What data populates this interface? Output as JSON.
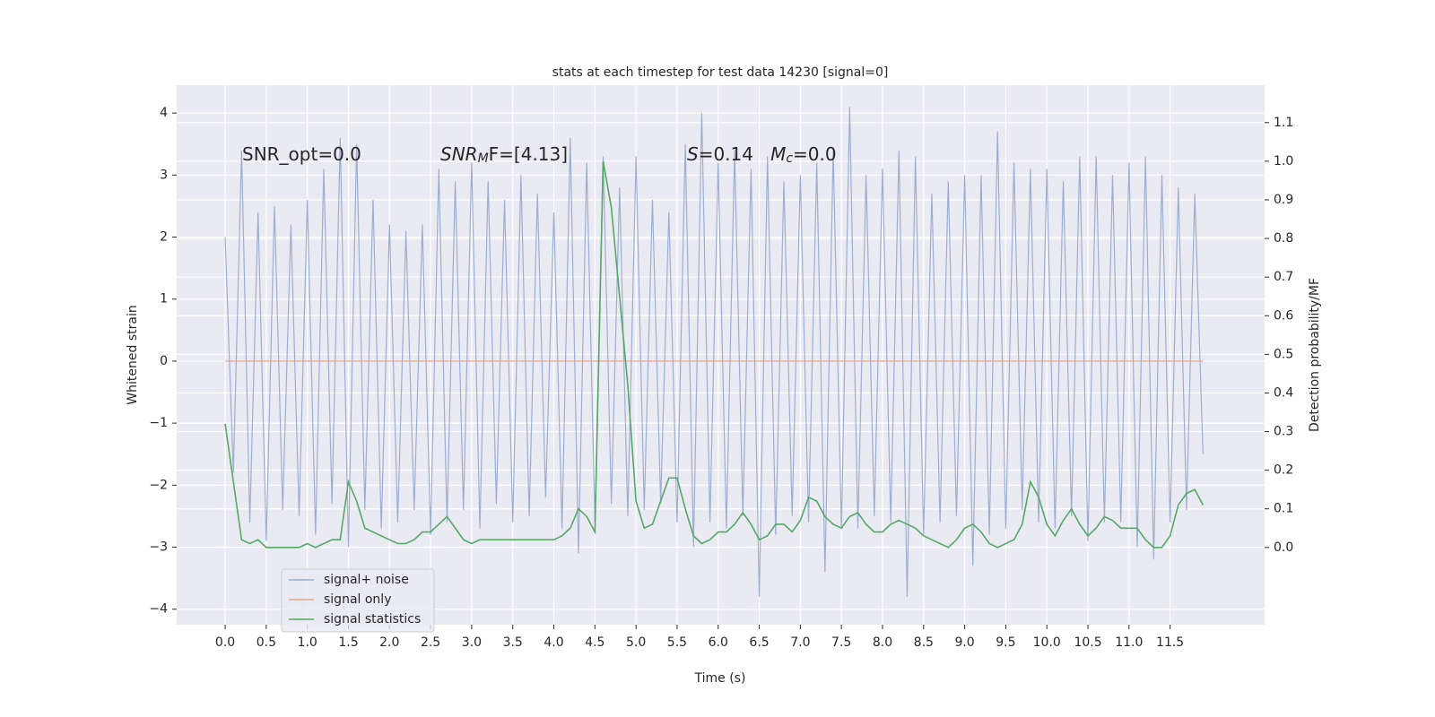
{
  "chart_data": {
    "type": "line",
    "title": "stats at each timestep for test data 14230 [signal=0]",
    "xlabel": "Time (s)",
    "ylabel": "Whitened strain",
    "y2label": "Detection probability/MF",
    "annotations": [
      [
        "SNR_opt=0.0"
      ],
      [
        "SNR",
        "M",
        "F=[4.13]"
      ],
      [
        "S",
        "=0.14   ",
        "M",
        "c",
        "=0.0"
      ]
    ],
    "grid": true,
    "background": "#eaeaf2",
    "legend": "lower left",
    "xlim": [
      -0.59,
      12.65
    ],
    "ylim": [
      -4.25,
      4.45
    ],
    "y2lim": [
      -0.2,
      1.197
    ],
    "xticks": [
      {
        "value": 0,
        "label": "0.0"
      },
      {
        "value": 0.5,
        "label": "0.5"
      },
      {
        "value": 1,
        "label": "1.0"
      },
      {
        "value": 1.5,
        "label": "1.5"
      },
      {
        "value": 2,
        "label": "2.0"
      },
      {
        "value": 2.5,
        "label": "2.5"
      },
      {
        "value": 3,
        "label": "3.0"
      },
      {
        "value": 3.5,
        "label": "3.5"
      },
      {
        "value": 4,
        "label": "4.0"
      },
      {
        "value": 4.5,
        "label": "4.5"
      },
      {
        "value": 5,
        "label": "5.0"
      },
      {
        "value": 5.5,
        "label": "5.5"
      },
      {
        "value": 6,
        "label": "6.0"
      },
      {
        "value": 6.5,
        "label": "6.5"
      },
      {
        "value": 7,
        "label": "7.0"
      },
      {
        "value": 7.5,
        "label": "7.5"
      },
      {
        "value": 8,
        "label": "8.0"
      },
      {
        "value": 8.5,
        "label": "8.5"
      },
      {
        "value": 9,
        "label": "9.0"
      },
      {
        "value": 9.5,
        "label": "9.5"
      },
      {
        "value": 10,
        "label": "10.0"
      },
      {
        "value": 10.5,
        "label": "10.5"
      },
      {
        "value": 11,
        "label": "11.0"
      },
      {
        "value": 11.5,
        "label": "11.5"
      }
    ],
    "yticks": [
      {
        "value": -4,
        "label": "−4"
      },
      {
        "value": -3,
        "label": "−3"
      },
      {
        "value": -2,
        "label": "−2"
      },
      {
        "value": -1,
        "label": "−1"
      },
      0,
      1,
      2,
      3,
      4
    ],
    "y2ticks": [
      {
        "value": 0,
        "label": "0.0"
      },
      {
        "value": 0.1,
        "label": "0.1"
      },
      {
        "value": 0.2,
        "label": "0.2"
      },
      {
        "value": 0.3,
        "label": "0.3"
      },
      {
        "value": 0.4,
        "label": "0.4"
      },
      {
        "value": 0.5,
        "label": "0.5"
      },
      {
        "value": 0.6,
        "label": "0.6"
      },
      {
        "value": 0.7,
        "label": "0.7"
      },
      {
        "value": 0.8,
        "label": "0.8"
      },
      {
        "value": 0.9,
        "label": "0.9"
      },
      {
        "value": 1,
        "label": "1.0"
      },
      {
        "value": 1.1,
        "label": "1.1"
      }
    ],
    "x": [
      0,
      0.1,
      0.2,
      0.3,
      0.4,
      0.5,
      0.6,
      0.7,
      0.8,
      0.9,
      1,
      1.1,
      1.2,
      1.3,
      1.4,
      1.5,
      1.6,
      1.7,
      1.8,
      1.9,
      2,
      2.1,
      2.2,
      2.3,
      2.4,
      2.5,
      2.6,
      2.7,
      2.8,
      2.9,
      3,
      3.1,
      3.2,
      3.3,
      3.4,
      3.5,
      3.6,
      3.7,
      3.8,
      3.9,
      4,
      4.1,
      4.2,
      4.3,
      4.4,
      4.5,
      4.6,
      4.7,
      4.8,
      4.9,
      5,
      5.1,
      5.2,
      5.3,
      5.4,
      5.5,
      5.6,
      5.7,
      5.8,
      5.9,
      6,
      6.1,
      6.2,
      6.3,
      6.4,
      6.5,
      6.6,
      6.7,
      6.8,
      6.9,
      7,
      7.1,
      7.2,
      7.3,
      7.4,
      7.5,
      7.6,
      7.7,
      7.8,
      7.9,
      8,
      8.1,
      8.2,
      8.3,
      8.4,
      8.5,
      8.6,
      8.7,
      8.8,
      8.9,
      9,
      9.1,
      9.2,
      9.3,
      9.4,
      9.5,
      9.6,
      9.7,
      9.8,
      9.9,
      10,
      10.1,
      10.2,
      10.3,
      10.4,
      10.5,
      10.6,
      10.7,
      10.8,
      10.9,
      11,
      11.1,
      11.2,
      11.3,
      11.4,
      11.5,
      11.6,
      11.7,
      11.8,
      11.9
    ],
    "series": [
      {
        "name": "signal+ noise",
        "color": "#9aabd0",
        "axis": "y",
        "values": [
          2.0,
          -1.8,
          3.4,
          -2.6,
          2.4,
          -2.9,
          2.5,
          -2.4,
          2.2,
          -2.5,
          2.6,
          -2.8,
          3.1,
          -2.3,
          3.6,
          -3.0,
          3.5,
          -2.4,
          2.6,
          -2.7,
          2.2,
          -2.6,
          2.1,
          -2.4,
          2.2,
          -2.8,
          3.1,
          -2.6,
          2.9,
          -2.4,
          3.2,
          -2.7,
          2.9,
          -2.3,
          2.6,
          -2.6,
          3.0,
          -2.5,
          2.7,
          -2.2,
          2.4,
          -2.7,
          3.6,
          -3.1,
          3.2,
          -2.6,
          3.3,
          -2.3,
          2.8,
          -2.5,
          3.3,
          -2.4,
          2.6,
          -2.3,
          2.4,
          -2.6,
          3.5,
          -3.0,
          4.0,
          -2.6,
          3.2,
          -2.7,
          3.4,
          -2.5,
          3.1,
          -3.8,
          3.3,
          -2.8,
          2.9,
          -2.5,
          3.0,
          -2.6,
          3.2,
          -3.4,
          3.4,
          -2.7,
          4.1,
          -2.7,
          3.0,
          -2.5,
          3.1,
          -2.6,
          3.4,
          -3.8,
          3.3,
          -2.8,
          2.7,
          -2.6,
          2.9,
          -2.5,
          3.0,
          -3.3,
          3.0,
          -2.8,
          3.7,
          -2.7,
          3.2,
          -2.4,
          3.1,
          -2.6,
          3.1,
          -2.7,
          2.9,
          -2.5,
          3.3,
          -2.9,
          3.3,
          -2.6,
          3.0,
          -2.6,
          3.2,
          -3.0,
          3.3,
          -3.2,
          3.0,
          -2.6,
          2.8,
          -2.4,
          2.7,
          -1.5
        ]
      },
      {
        "name": "signal only",
        "color": "#e3a387",
        "axis": "y",
        "values": [
          0,
          0,
          0,
          0,
          0,
          0,
          0,
          0,
          0,
          0,
          0,
          0,
          0,
          0,
          0,
          0,
          0,
          0,
          0,
          0,
          0,
          0,
          0,
          0,
          0,
          0,
          0,
          0,
          0,
          0,
          0,
          0,
          0,
          0,
          0,
          0,
          0,
          0,
          0,
          0,
          0,
          0,
          0,
          0,
          0,
          0,
          0,
          0,
          0,
          0,
          0,
          0,
          0,
          0,
          0,
          0,
          0,
          0,
          0,
          0,
          0,
          0,
          0,
          0,
          0,
          0,
          0,
          0,
          0,
          0,
          0,
          0,
          0,
          0,
          0,
          0,
          0,
          0,
          0,
          0,
          0,
          0,
          0,
          0,
          0,
          0,
          0,
          0,
          0,
          0,
          0,
          0,
          0,
          0,
          0,
          0,
          0,
          0,
          0,
          0,
          0,
          0,
          0,
          0,
          0,
          0,
          0,
          0,
          0,
          0,
          0,
          0,
          0,
          0,
          0,
          0,
          0,
          0,
          0,
          0
        ]
      },
      {
        "name": "signal statistics",
        "color": "#55a868",
        "axis": "y2",
        "values": [
          0.32,
          0.17,
          0.02,
          0.01,
          0.02,
          0.0,
          0.0,
          0.0,
          0.0,
          0.0,
          0.01,
          0.0,
          0.01,
          0.02,
          0.02,
          0.17,
          0.12,
          0.05,
          0.04,
          0.03,
          0.02,
          0.01,
          0.01,
          0.02,
          0.04,
          0.04,
          0.06,
          0.08,
          0.05,
          0.02,
          0.01,
          0.02,
          0.02,
          0.02,
          0.02,
          0.02,
          0.02,
          0.02,
          0.02,
          0.02,
          0.02,
          0.03,
          0.05,
          0.1,
          0.08,
          0.04,
          1.0,
          0.88,
          0.65,
          0.42,
          0.12,
          0.05,
          0.06,
          0.12,
          0.18,
          0.18,
          0.1,
          0.03,
          0.01,
          0.02,
          0.04,
          0.04,
          0.06,
          0.09,
          0.06,
          0.02,
          0.03,
          0.06,
          0.06,
          0.04,
          0.07,
          0.13,
          0.12,
          0.08,
          0.06,
          0.05,
          0.08,
          0.09,
          0.06,
          0.04,
          0.04,
          0.06,
          0.07,
          0.06,
          0.05,
          0.03,
          0.02,
          0.01,
          0.0,
          0.02,
          0.05,
          0.06,
          0.04,
          0.01,
          0.0,
          0.01,
          0.02,
          0.06,
          0.17,
          0.13,
          0.06,
          0.03,
          0.07,
          0.1,
          0.06,
          0.03,
          0.05,
          0.08,
          0.07,
          0.05,
          0.05,
          0.05,
          0.02,
          0.0,
          0.0,
          0.03,
          0.11,
          0.14,
          0.15,
          0.11
        ]
      }
    ]
  }
}
